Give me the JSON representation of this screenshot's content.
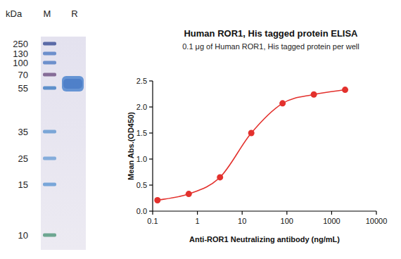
{
  "chart_data": {
    "type": "line",
    "title": "Human ROR1, His tagged protein ELISA",
    "subtitle": "0.1 μg of Human ROR1, His tagged protein per well",
    "x_label": "Anti-ROR1 Neutralizing antibody (ng/mL)",
    "y_label": "Mean Abs.(OD450)",
    "x": [
      0.128,
      0.64,
      3.2,
      16,
      80,
      400,
      2000
    ],
    "values": [
      0.21,
      0.33,
      0.65,
      1.5,
      2.07,
      2.24,
      2.33
    ],
    "color": "#e3312d",
    "marker": "circle",
    "line_style": "solid",
    "log": "x",
    "xlim": [
      0.1,
      10000
    ],
    "xticks": [
      0.1,
      1,
      10,
      100,
      1000,
      10000
    ],
    "ylim": [
      0,
      2.5
    ],
    "yticks": [
      {
        "value": 0,
        "label": "0.0"
      },
      0.5,
      {
        "value": 1,
        "label": "1.0"
      },
      1.5,
      {
        "value": 2,
        "label": "2.0"
      },
      2.5
    ],
    "grid": false
  },
  "gel": {
    "unit": "kDa",
    "lanes": [
      "M",
      "R"
    ],
    "markers": [
      250,
      130,
      100,
      70,
      55,
      35,
      25,
      15,
      10
    ]
  }
}
